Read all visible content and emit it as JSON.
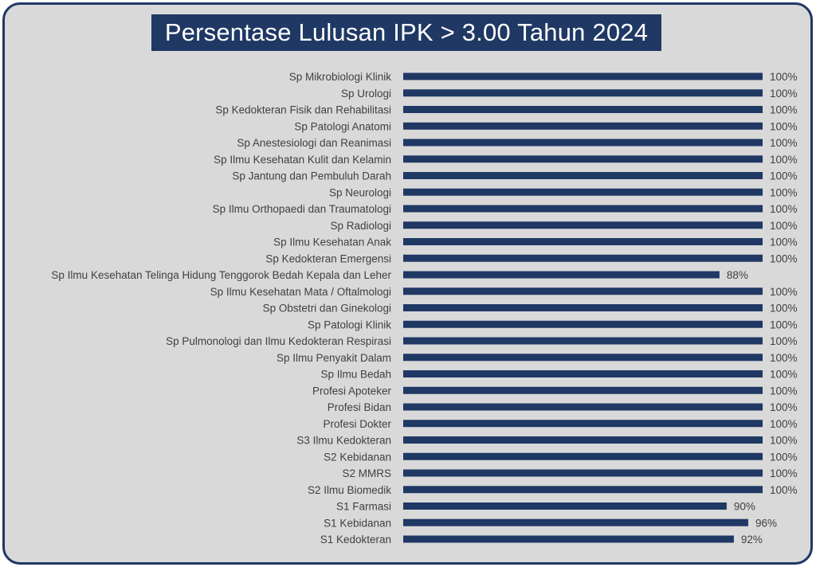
{
  "colors": {
    "frame": "#1f3864",
    "bar": "#1f3864",
    "background": "#d9d9d9",
    "text": "#404040"
  },
  "chart_data": {
    "type": "bar",
    "orientation": "horizontal",
    "title": "Persentase Lulusan IPK > 3.00 Tahun 2024",
    "xlim": [
      0,
      100
    ],
    "grid": false,
    "categories": [
      "Sp Mikrobiologi Klinik",
      "Sp Urologi",
      "Sp Kedokteran Fisik dan Rehabilitasi",
      "Sp Patologi Anatomi",
      "Sp Anestesiologi dan Reanimasi",
      "Sp Ilmu Kesehatan Kulit dan Kelamin",
      "Sp Jantung dan Pembuluh Darah",
      "Sp Neurologi",
      "Sp Ilmu Orthopaedi dan Traumatologi",
      "Sp Radiologi",
      "Sp Ilmu Kesehatan Anak",
      "Sp Kedokteran Emergensi",
      "Sp Ilmu Kesehatan Telinga Hidung Tenggorok Bedah Kepala dan Leher",
      "Sp Ilmu Kesehatan Mata / Oftalmologi",
      "Sp Obstetri dan Ginekologi",
      "Sp Patologi Klinik",
      "Sp Pulmonologi dan Ilmu Kedokteran Respirasi",
      "Sp Ilmu Penyakit Dalam",
      "Sp Ilmu Bedah",
      "Profesi Apoteker",
      "Profesi Bidan",
      "Profesi Dokter",
      "S3 Ilmu Kedokteran",
      "S2 Kebidanan",
      "S2 MMRS",
      "S2 Ilmu Biomedik",
      "S1 Farmasi",
      "S1 Kebidanan",
      "S1 Kedokteran"
    ],
    "values": [
      100,
      100,
      100,
      100,
      100,
      100,
      100,
      100,
      100,
      100,
      100,
      100,
      88,
      100,
      100,
      100,
      100,
      100,
      100,
      100,
      100,
      100,
      100,
      100,
      100,
      100,
      90,
      96,
      92
    ],
    "value_labels": [
      "100%",
      "100%",
      "100%",
      "100%",
      "100%",
      "100%",
      "100%",
      "100%",
      "100%",
      "100%",
      "100%",
      "100%",
      "88%",
      "100%",
      "100%",
      "100%",
      "100%",
      "100%",
      "100%",
      "100%",
      "100%",
      "100%",
      "100%",
      "100%",
      "100%",
      "100%",
      "90%",
      "96%",
      "92%"
    ]
  }
}
